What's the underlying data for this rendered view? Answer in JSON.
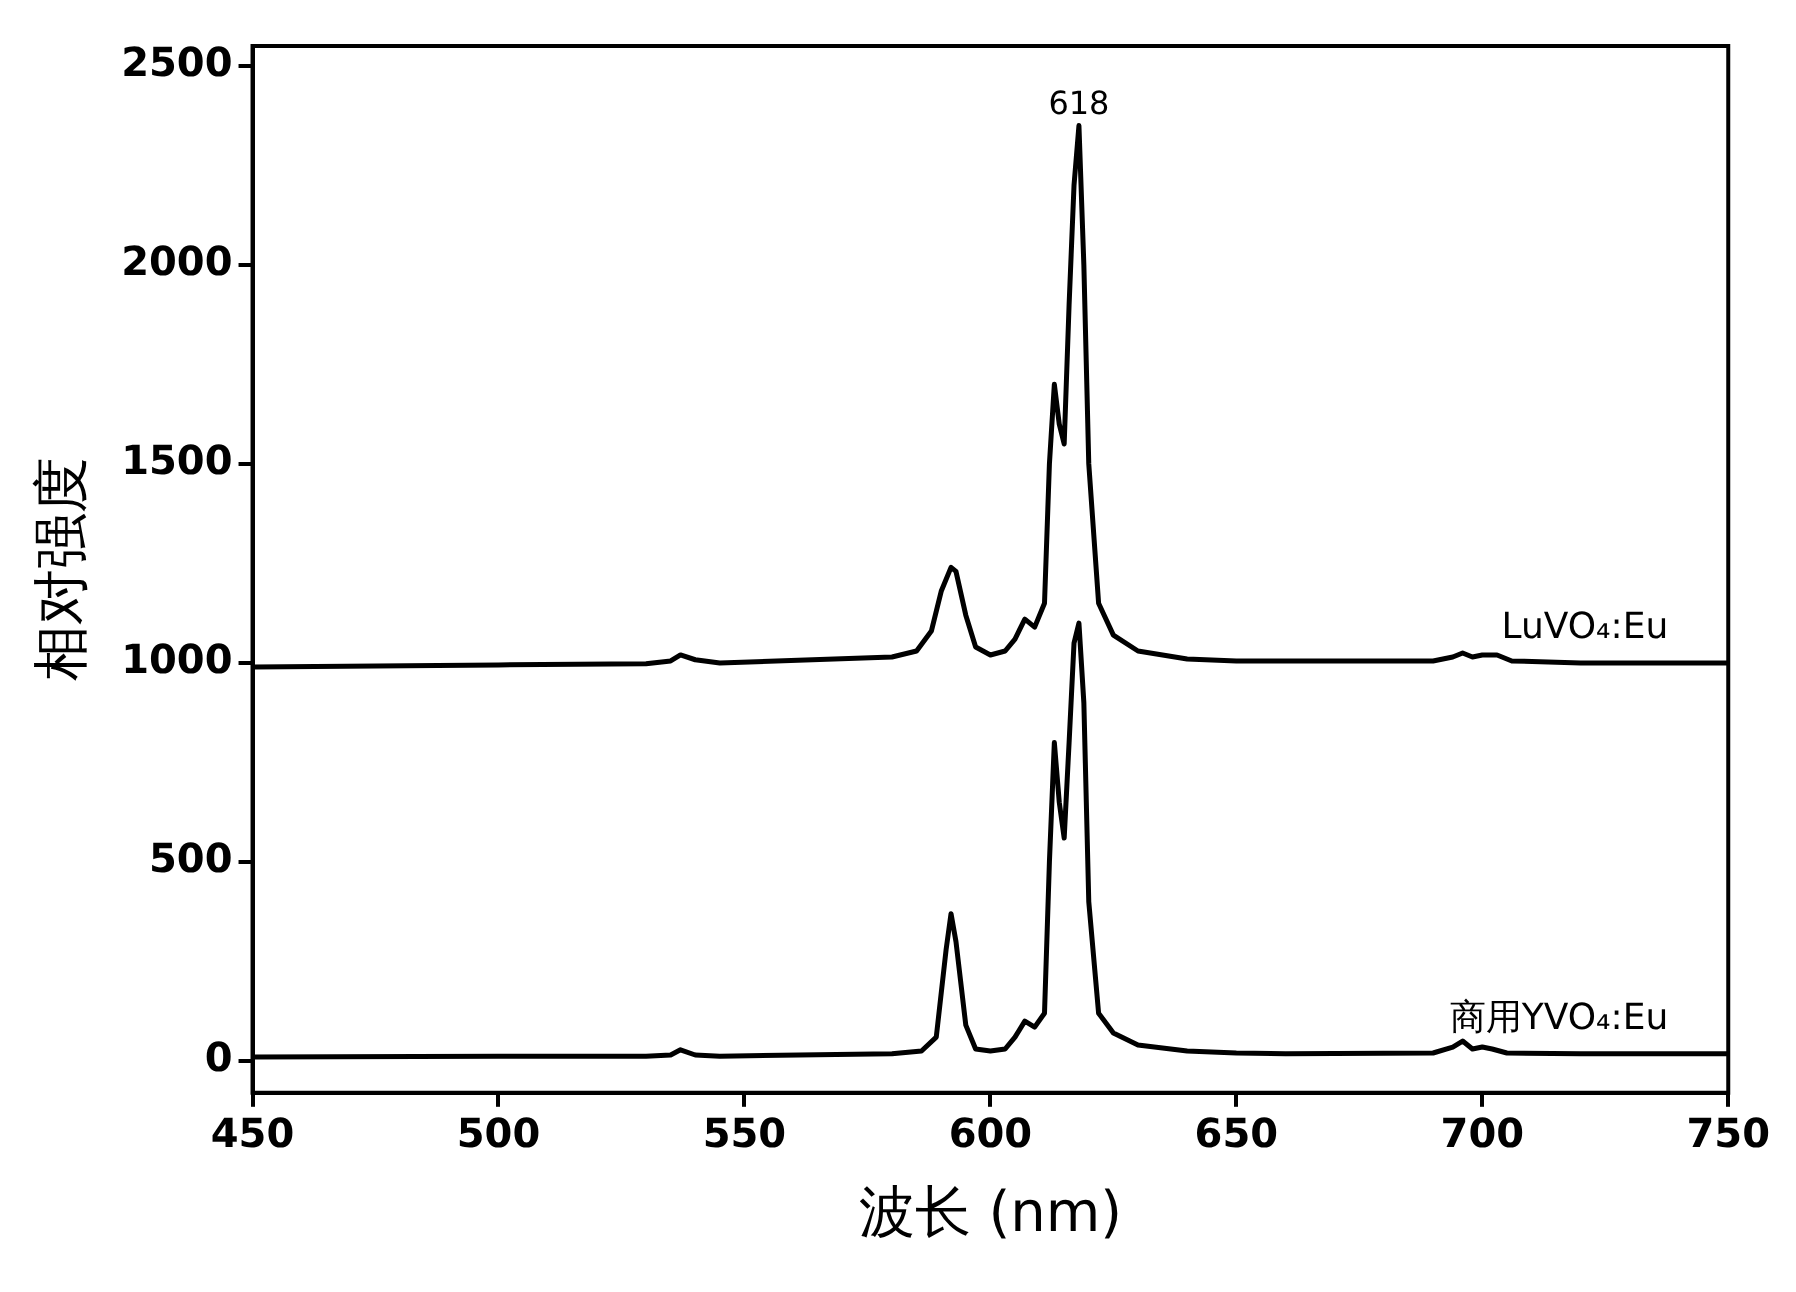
{
  "chart_data": {
    "type": "line",
    "xlabel": "波长 (nm)",
    "ylabel": "相对强度",
    "xlim": [
      450,
      750
    ],
    "xticks": [
      450,
      500,
      550,
      600,
      650,
      700,
      750
    ],
    "ylim": [
      -80,
      2550
    ],
    "yticks": [
      0,
      500,
      1000,
      1500,
      2000,
      2500
    ],
    "grid": false,
    "legend": false,
    "marker": "none",
    "line_style": "solid",
    "annotations": [
      {
        "text": "618",
        "x": 618,
        "y": 2350
      }
    ],
    "series": [
      {
        "name": "LuVO₄:Eu",
        "color": "#000000",
        "x": [
          450,
          500,
          530,
          535,
          537,
          540,
          545,
          580,
          585,
          588,
          590,
          592,
          593,
          595,
          597,
          600,
          603,
          605,
          607,
          609,
          611,
          612,
          613,
          614,
          615,
          616,
          617,
          618,
          619,
          620,
          622,
          625,
          630,
          640,
          650,
          690,
          694,
          696,
          698,
          700,
          703,
          706,
          720,
          750
        ],
        "values": [
          990,
          995,
          998,
          1005,
          1020,
          1008,
          1000,
          1015,
          1030,
          1080,
          1180,
          1240,
          1230,
          1120,
          1040,
          1020,
          1030,
          1060,
          1110,
          1090,
          1150,
          1500,
          1700,
          1600,
          1550,
          1900,
          2200,
          2350,
          2000,
          1500,
          1150,
          1070,
          1030,
          1010,
          1005,
          1005,
          1015,
          1025,
          1015,
          1020,
          1020,
          1005,
          1000,
          1000
        ]
      },
      {
        "name": "商用YVO₄:Eu",
        "color": "#000000",
        "x": [
          450,
          500,
          530,
          535,
          537,
          540,
          545,
          580,
          586,
          589,
          591,
          592,
          593,
          595,
          597,
          600,
          603,
          605,
          607,
          609,
          611,
          612,
          613,
          614,
          615,
          616,
          617,
          618,
          619,
          620,
          622,
          625,
          630,
          640,
          650,
          660,
          690,
          694,
          696,
          698,
          700,
          702,
          705,
          720,
          750
        ],
        "values": [
          10,
          12,
          12,
          15,
          28,
          15,
          12,
          18,
          25,
          60,
          280,
          370,
          300,
          90,
          30,
          25,
          30,
          60,
          100,
          85,
          120,
          500,
          800,
          650,
          560,
          800,
          1050,
          1100,
          900,
          400,
          120,
          70,
          40,
          25,
          20,
          18,
          20,
          35,
          50,
          30,
          35,
          30,
          20,
          18,
          18
        ]
      }
    ]
  }
}
